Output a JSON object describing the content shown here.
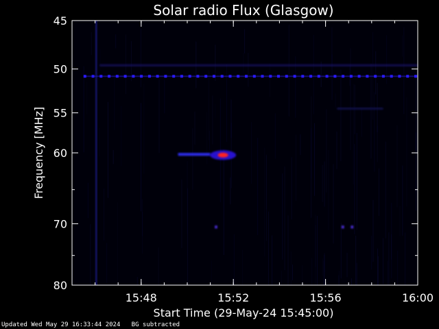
{
  "chart_data": {
    "type": "heatmap",
    "title": "Solar radio Flux (Glasgow)",
    "xlabel": "Start Time (29-May-24 15:45:00)",
    "ylabel": "Frequency [MHz]",
    "x_unit": "minutes after 15:45:00",
    "xlim": [
      0,
      15
    ],
    "ylim": [
      45,
      80
    ],
    "yscale": "log",
    "y_reversed": true,
    "x_ticks": [
      {
        "value": 3,
        "label": "15:48"
      },
      {
        "value": 7,
        "label": "15:52"
      },
      {
        "value": 11,
        "label": "15:56"
      },
      {
        "value": 15,
        "label": "16:00"
      }
    ],
    "y_ticks": [
      {
        "value": 45,
        "label": "45"
      },
      {
        "value": 50,
        "label": "50"
      },
      {
        "value": 55,
        "label": "55"
      },
      {
        "value": 60,
        "label": "60"
      },
      {
        "value": 70,
        "label": "70"
      },
      {
        "value": 80,
        "label": "80"
      }
    ],
    "background_color": "#00000a",
    "features": [
      {
        "name": "constant-interference-51mhz",
        "freq": 50.8,
        "t_start": 0.5,
        "t_end": 15,
        "intensity": "medium",
        "color": "#2a1aff"
      },
      {
        "name": "faint-band-50mhz",
        "freq": 49.6,
        "t_start": 1.2,
        "t_end": 15,
        "intensity": "low",
        "color": "#1a1870"
      },
      {
        "name": "burst-60mhz-weak",
        "freq": 60.2,
        "t_start": 4.6,
        "t_end": 6.0,
        "intensity": "medium",
        "color": "#3030ff"
      },
      {
        "name": "burst-60mhz-peak",
        "freq": 60.3,
        "t_start": 6.1,
        "t_end": 7.0,
        "intensity": "high",
        "color": "#ff2020"
      },
      {
        "name": "spot-70mhz-a",
        "freq": 70.5,
        "t_start": 6.2,
        "t_end": 6.3,
        "intensity": "medium",
        "color": "#5a38ff"
      },
      {
        "name": "spot-70mhz-b",
        "freq": 70.5,
        "t_start": 11.7,
        "t_end": 11.8,
        "intensity": "medium",
        "color": "#5a38ff"
      },
      {
        "name": "spot-70mhz-c",
        "freq": 70.5,
        "t_start": 12.1,
        "t_end": 12.2,
        "intensity": "medium",
        "color": "#5a38ff"
      },
      {
        "name": "vertical-streak-1546",
        "freq_range": [
          45,
          80
        ],
        "t_start": 1.0,
        "t_end": 1.1,
        "intensity": "low",
        "color": "#2020a0"
      },
      {
        "name": "diffuse-54mhz",
        "freq": 54.5,
        "t_start": 11.5,
        "t_end": 13.5,
        "intensity": "low",
        "color": "#151560"
      }
    ]
  },
  "footer": {
    "text": "Updated Wed May 29 16:33:44 2024   BG subtracted"
  }
}
